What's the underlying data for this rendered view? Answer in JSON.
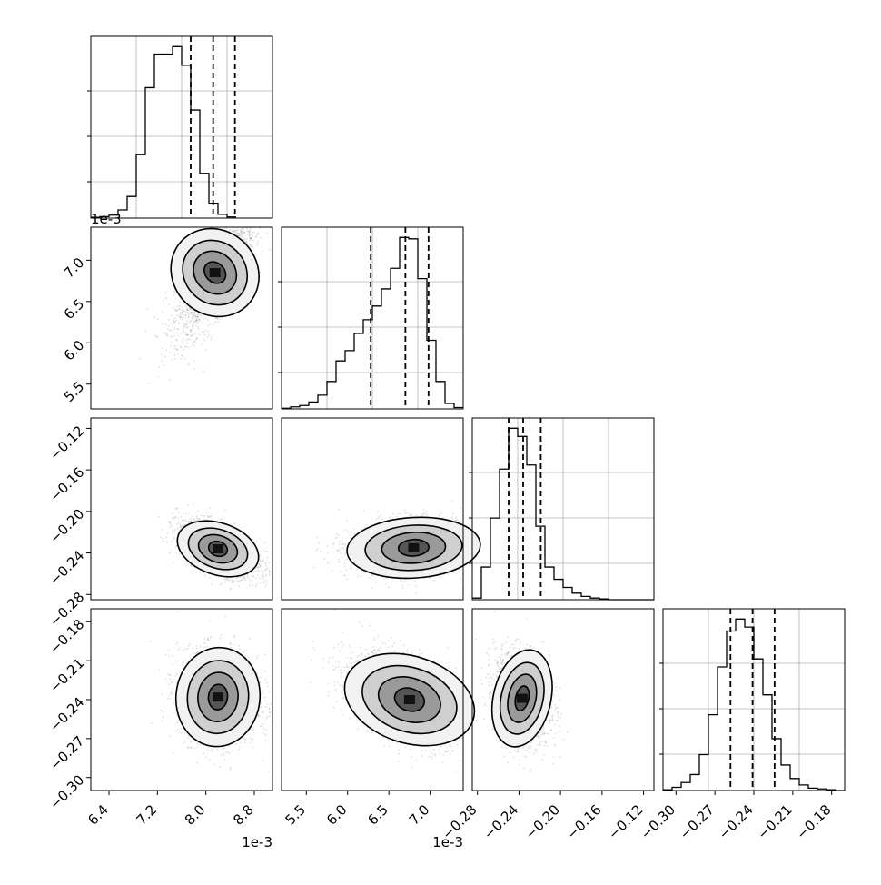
{
  "chart_data": [
    {
      "type": "histogram",
      "variable": "p0",
      "x_range": [
        6.1,
        9.1
      ],
      "x_scale_label": "1e-3",
      "bin_edges_start": 6.1,
      "bin_width": 0.15,
      "counts": [
        2,
        4,
        8,
        22,
        58,
        170,
        350,
        440,
        440,
        460,
        410,
        290,
        120,
        40,
        10,
        3
      ],
      "quantiles": [
        7.75,
        8.12,
        8.48
      ],
      "grid": true
    },
    {
      "type": "scatter",
      "panel": "p1 vs p0",
      "x_range": [
        6.1,
        9.1
      ],
      "y_range": [
        5.2,
        7.4
      ],
      "y_ticks": [
        5.5,
        6.0,
        6.5,
        7.0
      ],
      "y_tick_labels": [
        "5.5",
        "6.0",
        "6.5",
        "7.0"
      ],
      "y_scale_label": "1e-3",
      "center": [
        8.15,
        6.85
      ],
      "spread": [
        0.3,
        0.35
      ],
      "correlation": 0.75,
      "contour_levels": 4
    },
    {
      "type": "histogram",
      "variable": "p1",
      "x_range": [
        5.2,
        7.4
      ],
      "bin_edges_start": 5.2,
      "bin_width": 0.11,
      "counts": [
        1,
        3,
        5,
        10,
        20,
        40,
        70,
        85,
        110,
        130,
        150,
        175,
        205,
        250,
        248,
        190,
        100,
        40,
        8,
        2
      ],
      "quantiles": [
        6.28,
        6.7,
        6.98
      ],
      "grid": true
    },
    {
      "type": "scatter",
      "panel": "p2 vs p0",
      "x_range": [
        6.1,
        9.1
      ],
      "y_range": [
        -0.285,
        -0.11
      ],
      "y_ticks": [
        -0.12,
        -0.16,
        -0.2,
        -0.24,
        -0.28
      ],
      "y_tick_labels": [
        "−0.12",
        "−0.16",
        "−0.20",
        "−0.24",
        "−0.28"
      ],
      "center": [
        8.2,
        -0.236
      ],
      "spread": [
        0.3,
        0.012
      ],
      "correlation": -0.55,
      "contour_levels": 4
    },
    {
      "type": "scatter",
      "panel": "p2 vs p1",
      "x_range": [
        5.2,
        7.4
      ],
      "y_range": [
        -0.285,
        -0.11
      ],
      "center": [
        6.8,
        -0.235
      ],
      "spread": [
        0.35,
        0.012
      ],
      "correlation": 0.15,
      "contour_levels": 4
    },
    {
      "type": "histogram",
      "variable": "p2",
      "x_range": [
        -0.285,
        -0.11
      ],
      "bin_edges_start": -0.285,
      "bin_width": 0.00875,
      "counts": [
        2,
        40,
        100,
        160,
        210,
        200,
        165,
        90,
        40,
        25,
        15,
        8,
        4,
        2,
        1,
        0,
        0,
        0,
        0,
        0
      ],
      "quantiles": [
        -0.25,
        -0.236,
        -0.219
      ],
      "grid": true
    },
    {
      "type": "scatter",
      "panel": "p3 vs p0",
      "x_range": [
        6.1,
        9.1
      ],
      "y_range": [
        -0.31,
        -0.17
      ],
      "x_ticks": [
        6.4,
        7.2,
        8.0,
        8.8
      ],
      "x_tick_labels": [
        "6.4",
        "7.2",
        "8.0",
        "8.8"
      ],
      "x_scale_label": "1e-3",
      "y_ticks": [
        -0.18,
        -0.21,
        -0.24,
        -0.27,
        -0.3
      ],
      "y_tick_labels": [
        "−0.18",
        "−0.21",
        "−0.24",
        "−0.27",
        "−0.30"
      ],
      "center": [
        8.2,
        -0.238
      ],
      "spread": [
        0.3,
        0.016
      ],
      "correlation": -0.1,
      "contour_levels": 4
    },
    {
      "type": "scatter",
      "panel": "p3 vs p1",
      "x_range": [
        5.2,
        7.4
      ],
      "y_range": [
        -0.31,
        -0.17
      ],
      "x_ticks": [
        5.5,
        6.0,
        6.5,
        7.0
      ],
      "x_tick_labels": [
        "5.5",
        "6.0",
        "6.5",
        "7.0"
      ],
      "x_scale_label": "1e-3",
      "center": [
        6.75,
        -0.24
      ],
      "spread": [
        0.35,
        0.016
      ],
      "correlation": -0.5,
      "contour_levels": 4
    },
    {
      "type": "scatter",
      "panel": "p3 vs p2",
      "x_range": [
        -0.285,
        -0.11
      ],
      "y_range": [
        -0.31,
        -0.17
      ],
      "x_ticks": [
        -0.28,
        -0.24,
        -0.2,
        -0.16,
        -0.12
      ],
      "x_tick_labels": [
        "−0.28",
        "−0.24",
        "−0.20",
        "−0.16",
        "−0.12"
      ],
      "center": [
        -0.237,
        -0.239
      ],
      "spread": [
        0.012,
        0.016
      ],
      "correlation": -0.15,
      "contour_levels": 4
    },
    {
      "type": "histogram",
      "variable": "p3",
      "x_range": [
        -0.31,
        -0.17
      ],
      "x_ticks": [
        -0.3,
        -0.27,
        -0.24,
        -0.21,
        -0.18
      ],
      "x_tick_labels": [
        "−0.30",
        "−0.27",
        "−0.24",
        "−0.21",
        "−0.18"
      ],
      "bin_edges_start": -0.31,
      "bin_width": 0.007,
      "counts": [
        1,
        4,
        10,
        20,
        45,
        95,
        155,
        200,
        215,
        205,
        165,
        120,
        65,
        32,
        15,
        7,
        3,
        2,
        1,
        0
      ],
      "quantiles": [
        -0.258,
        -0.241,
        -0.224
      ],
      "grid": true
    }
  ]
}
